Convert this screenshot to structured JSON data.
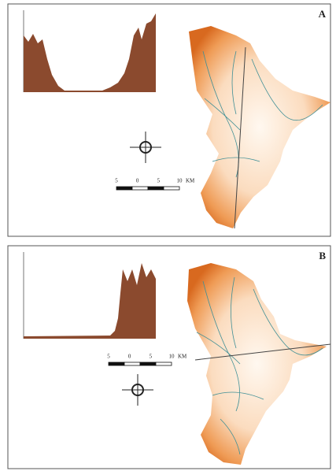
{
  "panels": [
    {
      "label": "A",
      "scale": {
        "ticks": [
          "5",
          "0",
          "5",
          "10"
        ],
        "unit": "KM"
      }
    },
    {
      "label": "B",
      "scale": {
        "ticks": [
          "5",
          "0",
          "5",
          "10"
        ],
        "unit": "KM"
      }
    }
  ]
}
